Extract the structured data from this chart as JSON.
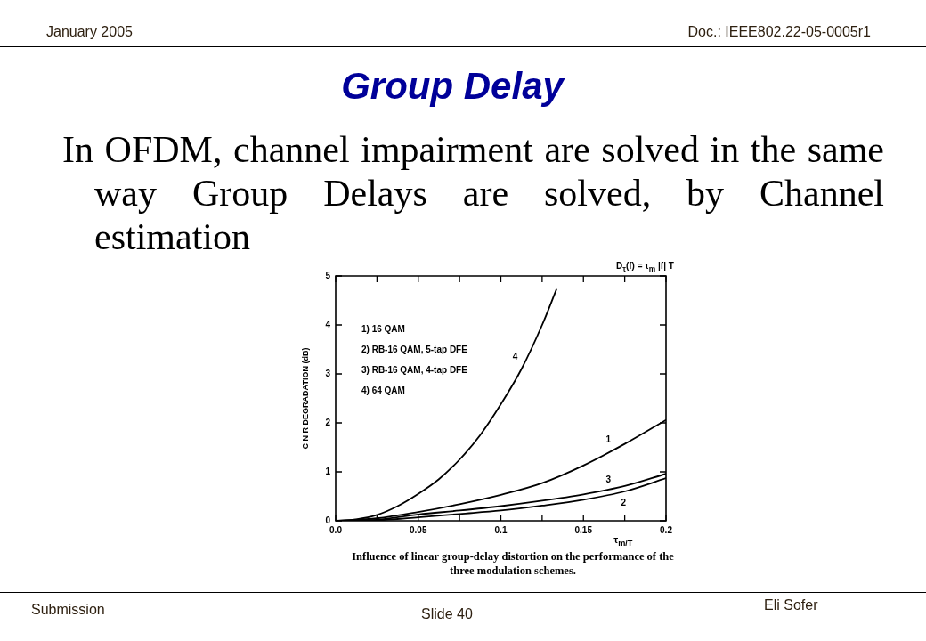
{
  "chart_data": {
    "type": "line",
    "title": "Group Delay",
    "subtitle": "In OFDM, channel impairment are solved in the same way Group Delays are solved, by Channel estimation",
    "xlabel": "τ$_{m/T}$",
    "ylabel": "C N R DEGRADATION (dB)",
    "annotations": [
      "January 2005",
      "Doc.: IEEE802.22-05-0005r1",
      "D$_{τ}$(f) = τ$_{m}$ |f| T",
      "1) 16 QAM",
      "2) RB-16 QAM, 5-tap DFE",
      "3) RB-16 QAM, 4-tap DFE",
      "4) 64 QAM",
      "Influence of linear group-delay distortion on the performance of the three modulation schemes.",
      "Submission",
      "Slide 40",
      "Eli Sofer"
    ],
    "x": [
      0,
      0.025,
      0.05,
      0.075,
      0.1,
      0.125,
      0.15,
      0.175,
      0.2
    ],
    "series": [
      {
        "name": "1",
        "color": "#000000",
        "values": [
          0,
          0.05,
          0.18,
          0.34,
          0.53,
          0.77,
          1.13,
          1.57,
          2.06
        ]
      },
      {
        "name": "2",
        "color": "#000000",
        "values": [
          0,
          0.01,
          0.07,
          0.14,
          0.21,
          0.31,
          0.43,
          0.6,
          0.87
        ]
      },
      {
        "name": "3",
        "color": "#000000",
        "values": [
          0,
          0.02,
          0.13,
          0.21,
          0.3,
          0.41,
          0.54,
          0.71,
          0.96
        ]
      },
      {
        "name": "4",
        "color": "#000000",
        "x": [
          0,
          0.0125,
          0.025,
          0.0375,
          0.05,
          0.0625,
          0.075,
          0.0875,
          0.1,
          0.1125,
          0.125,
          0.1336
        ],
        "values": [
          0,
          0.03,
          0.12,
          0.3,
          0.55,
          0.85,
          1.25,
          1.75,
          2.38,
          3.1,
          4.0,
          4.72
        ]
      }
    ],
    "xlim": [
      0,
      0.2
    ],
    "ylim": [
      0,
      5
    ],
    "xticks": [
      {
        "value": 0,
        "label": "0.0"
      },
      {
        "value": 0.025,
        "label": null
      },
      0.05,
      {
        "value": 0.075,
        "label": null
      },
      0.1,
      {
        "value": 0.125,
        "label": null
      },
      0.15,
      {
        "value": 0.175,
        "label": null
      },
      0.2
    ],
    "yticks": [
      0,
      1,
      2,
      3,
      4,
      5
    ],
    "grid": false,
    "legend": false,
    "marker": "none",
    "line_style": "solid"
  }
}
